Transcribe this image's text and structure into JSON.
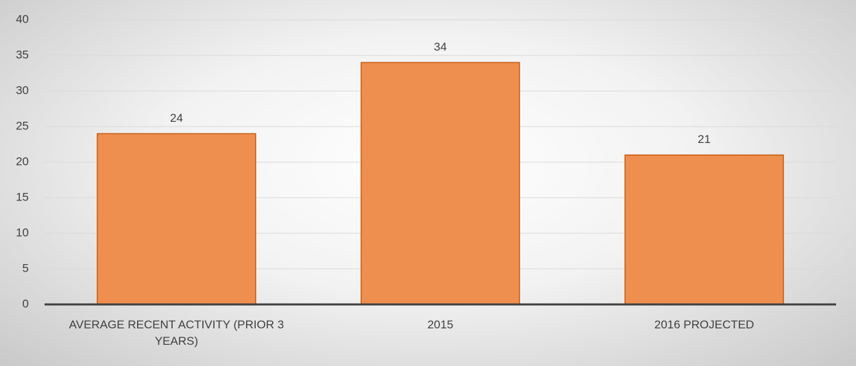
{
  "chart_data": {
    "type": "bar",
    "categories": [
      "AVERAGE RECENT ACTIVITY (PRIOR 3 YEARS)",
      "2015",
      "2016 PROJECTED"
    ],
    "values": [
      24,
      34,
      21
    ],
    "color": "#ef8f4f",
    "ylim": [
      0,
      40
    ],
    "yticks": [
      0,
      5,
      10,
      15,
      20,
      25,
      30,
      35,
      40
    ],
    "grid": true
  }
}
